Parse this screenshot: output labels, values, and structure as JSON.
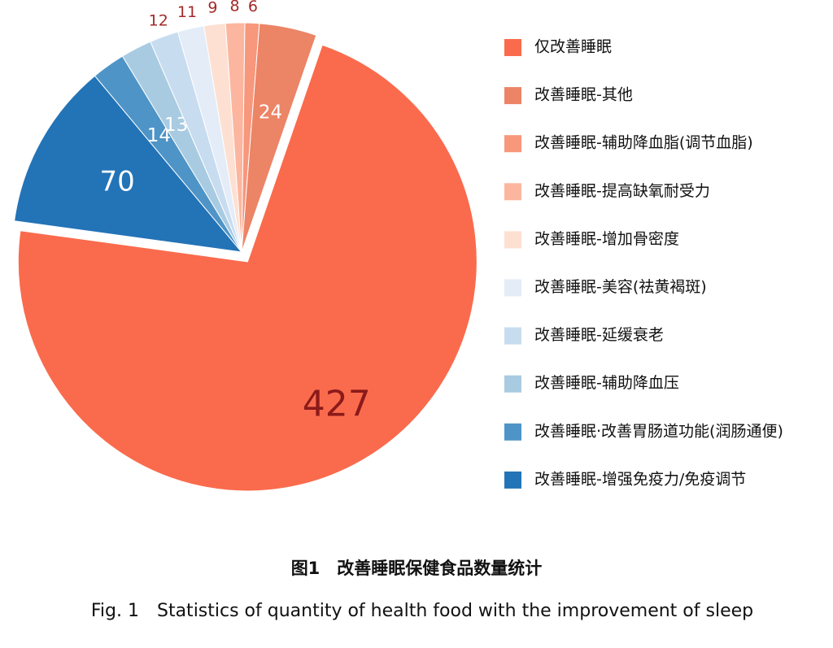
{
  "chart_data": {
    "type": "pie",
    "title": "图1　改善睡眠保健食品数量统计",
    "subtitle": "Fig. 1　Statistics of quantity of health food with the improvement of sleep",
    "categories": [
      "仅改善睡眠",
      "改善睡眠-其他",
      "改善睡眠-辅助降血脂(调节血脂)",
      "改善睡眠-提高缺氧耐受力",
      "改善睡眠-增加骨密度",
      "改善睡眠-美容(祛黄褐斑)",
      "改善睡眠-延缓衰老",
      "改善睡眠-辅助降血压",
      "改善睡眠·改善胃肠道功能(润肠通便)",
      "改善睡眠-增强免疫力/免疫调节"
    ],
    "values": [
      427,
      24,
      6,
      8,
      9,
      11,
      12,
      13,
      14,
      70
    ],
    "colors": [
      "#fa6b4d",
      "#ec8466",
      "#f7977c",
      "#fcb69f",
      "#fde0d2",
      "#e3ecf7",
      "#c8dcf0",
      "#a8cbe1",
      "#4e94c7",
      "#2373b7"
    ],
    "label_colors": [
      "#8b1a1a",
      "#ffffff",
      "#a52a2a",
      "#a52a2a",
      "#a52a2a",
      "#a52a2a",
      "#a52a2a",
      "#ffffff",
      "#ffffff",
      "#ffffff"
    ],
    "legend": "right"
  }
}
